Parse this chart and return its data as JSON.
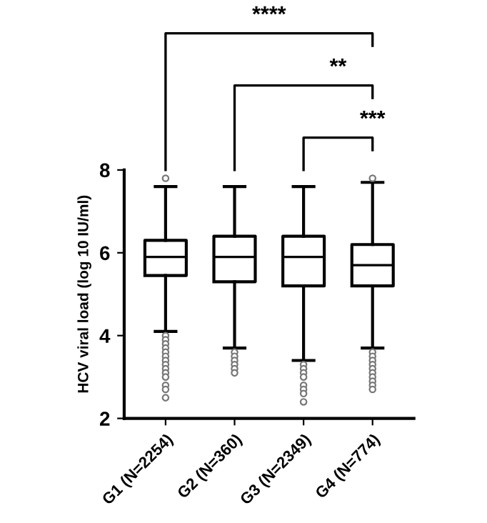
{
  "chart_data": {
    "type": "box",
    "ylabel": "HCV viral load (log 10 IU/ml)",
    "categories": [
      "G1 (N=2254)",
      "G2 (N=360)",
      "G3 (N=2349)",
      "G4 (N=774)"
    ],
    "boxes": [
      {
        "low": 4.1,
        "q1": 5.45,
        "median": 5.9,
        "q3": 6.3,
        "high": 7.6,
        "outliers": [
          7.8,
          4.0,
          3.9,
          3.8,
          3.7,
          3.6,
          3.5,
          3.4,
          3.3,
          3.2,
          3.1,
          3.0,
          2.8,
          2.7,
          2.5
        ]
      },
      {
        "low": 3.7,
        "q1": 5.3,
        "median": 5.9,
        "q3": 6.4,
        "high": 7.6,
        "outliers": [
          3.6,
          3.5,
          3.4,
          3.3,
          3.2,
          3.1
        ]
      },
      {
        "low": 3.4,
        "q1": 5.2,
        "median": 5.9,
        "q3": 6.4,
        "high": 7.6,
        "outliers": [
          3.3,
          3.2,
          3.1,
          3.0,
          2.8,
          2.7,
          2.6,
          2.4
        ]
      },
      {
        "low": 3.7,
        "q1": 5.2,
        "median": 5.7,
        "q3": 6.2,
        "high": 7.7,
        "outliers": [
          7.8,
          3.6,
          3.5,
          3.4,
          3.3,
          3.2,
          3.1,
          3.0,
          2.9,
          2.8,
          2.7
        ]
      }
    ],
    "color": "#000000",
    "ylim": [
      2,
      8
    ],
    "yticks": [
      2,
      4,
      6,
      8
    ],
    "grid": false,
    "annotations": [
      "****",
      "**",
      "***"
    ]
  }
}
